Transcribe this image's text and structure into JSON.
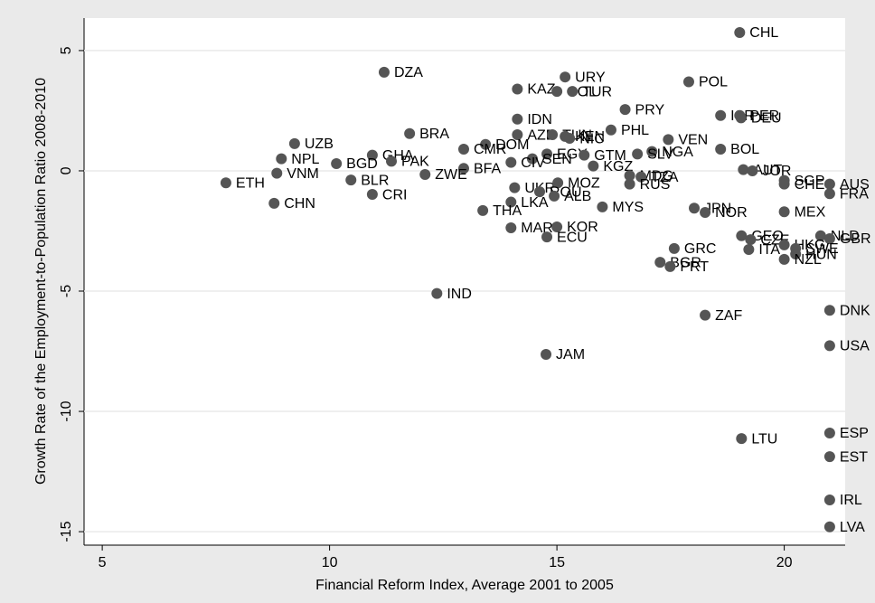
{
  "chart_data": {
    "type": "scatter",
    "xlabel": "Financial Reform Index, Average 2001 to 2005",
    "ylabel": "Growth Rate of the Employment-to-Population Ratio 2008-2010",
    "color": "#555555",
    "xlim": [
      4.6,
      21.34
    ],
    "ylim": [
      -15.56,
      6.35
    ],
    "xticks": [
      5,
      10,
      15,
      20
    ],
    "yticks": [
      -15,
      -10,
      -5,
      0,
      5
    ],
    "grid": true,
    "labels": [
      "CHL",
      "DZA",
      "URY",
      "POL",
      "KAZ",
      "COL",
      "TUR",
      "PRY",
      "ISR",
      "PER",
      "DEU",
      "IDN",
      "PHL",
      "AZE",
      "TUN",
      "KEN",
      "NIC",
      "BRA",
      "VEN",
      "UZB",
      "DOM",
      "CMR",
      "BOL",
      "NGA",
      "SLV",
      "EGY",
      "GTM",
      "GHA",
      "NPL",
      "SEN",
      "PAK",
      "CIV",
      "BGD",
      "KGZ",
      "BFA",
      "ZWE",
      "VNM",
      "AUT",
      "JOR",
      "MDG",
      "TZA",
      "RUS",
      "SGP",
      "CHE",
      "AUS",
      "FRA",
      "ETH",
      "BLR",
      "UKR",
      "MOZ",
      "ROU",
      "ALB",
      "CRI",
      "CHN",
      "LKA",
      "MYS",
      "THA",
      "JPN",
      "NOR",
      "MEX",
      "MAR",
      "KOR",
      "ECU",
      "GEO",
      "CZE",
      "NLD",
      "GBR",
      "GRC",
      "ITA",
      "HKG",
      "SWE",
      "HUN",
      "NZL",
      "BGR",
      "PRT",
      "IND",
      "ZAF",
      "DNK",
      "USA",
      "JAM",
      "LTU",
      "ESP",
      "EST",
      "IRL",
      "LVA"
    ],
    "x": [
      19.02,
      11.2,
      15.18,
      17.9,
      14.13,
      15.0,
      15.34,
      16.5,
      18.6,
      19.02,
      19.05,
      14.13,
      16.19,
      14.13,
      14.9,
      15.18,
      15.28,
      11.76,
      17.45,
      9.23,
      13.43,
      12.95,
      18.6,
      17.09,
      16.77,
      14.78,
      15.6,
      10.94,
      8.94,
      14.46,
      11.36,
      13.99,
      10.15,
      15.8,
      12.95,
      12.1,
      8.84,
      19.1,
      19.3,
      16.6,
      16.85,
      16.6,
      20.0,
      20.0,
      21.0,
      21.0,
      7.72,
      10.47,
      14.07,
      15.02,
      14.62,
      14.94,
      10.94,
      8.78,
      13.99,
      16.0,
      13.37,
      18.02,
      18.26,
      20.0,
      13.99,
      15.0,
      14.78,
      19.06,
      19.26,
      20.8,
      21.0,
      17.58,
      19.22,
      20.0,
      20.25,
      20.25,
      20.0,
      17.27,
      17.49,
      12.36,
      18.26,
      21.0,
      21.0,
      14.76,
      19.06,
      21.0,
      21.0,
      21.0,
      21.0
    ],
    "values": [
      5.75,
      4.1,
      3.9,
      3.7,
      3.4,
      3.3,
      3.3,
      2.55,
      2.3,
      2.3,
      2.2,
      2.15,
      1.7,
      1.5,
      1.5,
      1.43,
      1.35,
      1.55,
      1.3,
      1.13,
      1.1,
      0.9,
      0.9,
      0.8,
      0.7,
      0.7,
      0.65,
      0.65,
      0.5,
      0.5,
      0.4,
      0.35,
      0.3,
      0.2,
      0.1,
      -0.15,
      -0.1,
      0.05,
      0.0,
      -0.2,
      -0.25,
      -0.55,
      -0.4,
      -0.55,
      -0.55,
      -0.95,
      -0.5,
      -0.38,
      -0.7,
      -0.5,
      -0.87,
      -1.05,
      -0.98,
      -1.35,
      -1.3,
      -1.5,
      -1.65,
      -1.55,
      -1.73,
      -1.7,
      -2.37,
      -2.33,
      -2.75,
      -2.7,
      -2.86,
      -2.7,
      -2.82,
      -3.23,
      -3.27,
      -3.08,
      -3.23,
      -3.46,
      -3.68,
      -3.8,
      -3.98,
      -5.1,
      -6.0,
      -5.8,
      -7.27,
      -7.63,
      -11.13,
      -10.9,
      -11.88,
      -13.68,
      -14.8
    ]
  }
}
